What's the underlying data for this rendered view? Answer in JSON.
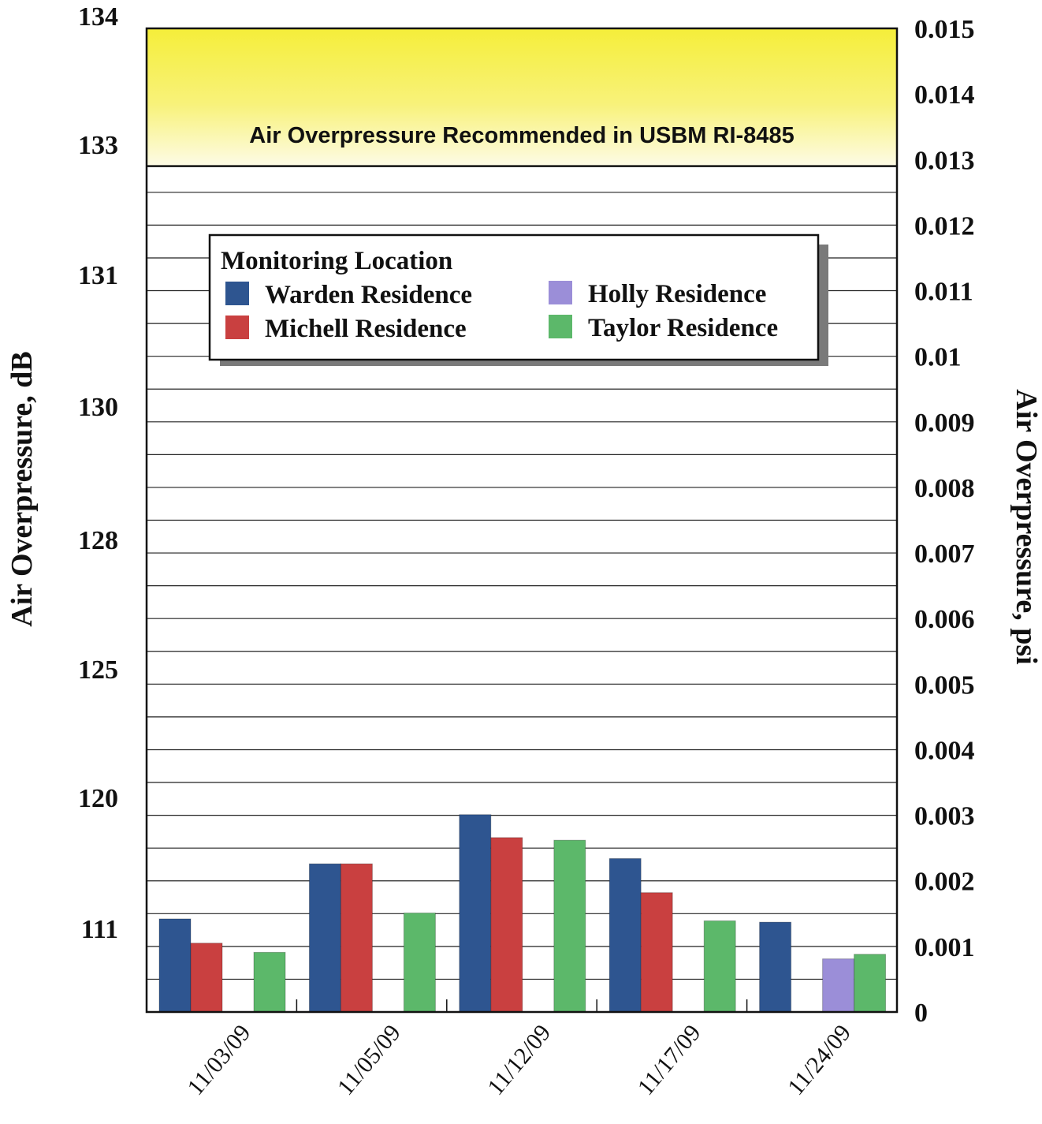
{
  "chart_data": {
    "type": "bar",
    "categories": [
      "11/03/09",
      "11/05/09",
      "11/12/09",
      "11/17/09",
      "11/24/09"
    ],
    "series": [
      {
        "name": "Warden Residence",
        "color": "#2e5590",
        "values": [
          0.00142,
          0.00226,
          0.00301,
          0.00234,
          0.00137
        ]
      },
      {
        "name": "Michell Residence",
        "color": "#c94040",
        "values": [
          0.00105,
          0.00226,
          0.00266,
          0.00182,
          null
        ]
      },
      {
        "name": "Holly Residence",
        "color": "#9b8ed8",
        "values": [
          null,
          null,
          null,
          null,
          0.00081
        ]
      },
      {
        "name": "Taylor Residence",
        "color": "#5cb86a",
        "values": [
          0.00091,
          0.00151,
          0.00262,
          0.00139,
          0.00088
        ]
      }
    ],
    "ylabel": "Air Overpressure, dB",
    "y2label": "Air Overpressure, psi",
    "ylim": [
      0,
      0.015
    ],
    "left_ticks": [
      "134",
      "133",
      "131",
      "130",
      "128",
      "125",
      "120",
      "111"
    ],
    "right_ticks": [
      "0",
      "0.001",
      "0.002",
      "0.003",
      "0.004",
      "0.005",
      "0.006",
      "0.007",
      "0.008",
      "0.009",
      "0.01",
      "0.011",
      "0.012",
      "0.013",
      "0.014",
      "0.015"
    ],
    "threshold_band": {
      "label": "Air Overpressure Recommended in USBM RI-8485",
      "from": 0.0129,
      "to": 0.015,
      "color": "#f5ee3a"
    },
    "legend": {
      "title": "Monitoring Location",
      "placement": "top-center"
    },
    "grid": true
  }
}
